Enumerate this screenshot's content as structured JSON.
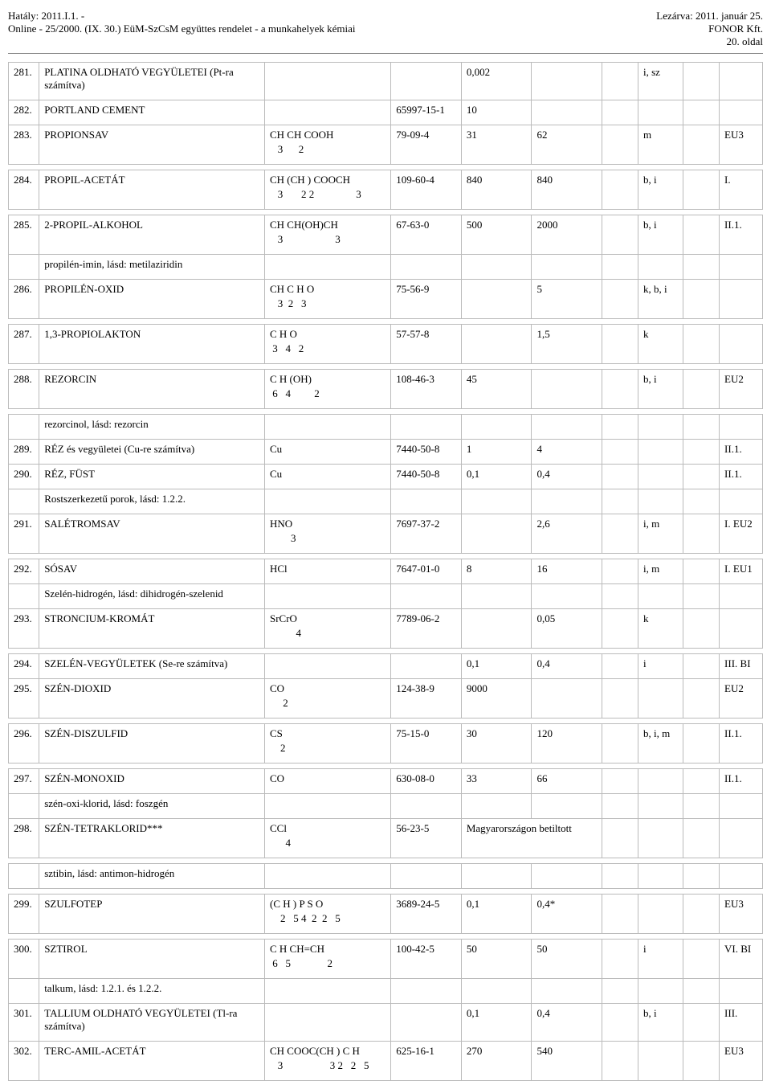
{
  "header": {
    "left1": "Hatály: 2011.I.1. -",
    "left2": "Online - 25/2000. (IX. 30.) EüM-SzCsM együttes rendelet - a munkahelyek kémiai",
    "right1": "Lezárva: 2011. január 25.",
    "right2": "FONOR Kft.",
    "right3": "20. oldal"
  },
  "rows": [
    {
      "n": "281.",
      "name": "PLATINA OLDHATÓ VEGYÜLETEI (Pt-ra számítva)",
      "formula": "",
      "sub": "",
      "cas": "",
      "v1": "0,002",
      "v2": "",
      "note": "i, sz",
      "cls": ""
    },
    {
      "n": "282.",
      "name": "PORTLAND CEMENT",
      "formula": "",
      "sub": "",
      "cas": "65997-15-1",
      "v1": "10",
      "v2": "",
      "note": "",
      "cls": ""
    },
    {
      "n": "283.",
      "name": "PROPIONSAV",
      "formula": "CH CH COOH",
      "sub": "   3      2",
      "cas": "79-09-4",
      "v1": "31",
      "v2": "62",
      "note": "m",
      "cls": "EU3"
    },
    {
      "n": "284.",
      "name": "PROPIL-ACETÁT",
      "formula": "CH (CH ) COOCH",
      "sub": "   3       2 2                3",
      "cas": "109-60-4",
      "v1": "840",
      "v2": "840",
      "note": "b, i",
      "cls": "I."
    },
    {
      "n": "285.",
      "name": "2-PROPIL-ALKOHOL",
      "formula": "CH CH(OH)CH",
      "sub": "   3                    3",
      "cas": "67-63-0",
      "v1": "500",
      "v2": "2000",
      "note": "b, i",
      "cls": "II.1."
    },
    {
      "n": "",
      "name": "propilén-imin, lásd: metilaziridin",
      "formula": "",
      "sub": "",
      "cas": "",
      "v1": "",
      "v2": "",
      "note": "",
      "cls": ""
    },
    {
      "n": "286.",
      "name": "PROPILÉN-OXID",
      "formula": "CH C H O",
      "sub": "   3  2   3",
      "cas": "75-56-9",
      "v1": "",
      "v2": "5",
      "note": "k, b, i",
      "cls": ""
    },
    {
      "n": "287.",
      "name": "1,3-PROPIOLAKTON",
      "formula": "C H O",
      "sub": " 3   4   2",
      "cas": "57-57-8",
      "v1": "",
      "v2": "1,5",
      "note": "k",
      "cls": ""
    },
    {
      "n": "288.",
      "name": "REZORCIN",
      "formula": "C H (OH)",
      "sub": " 6   4         2",
      "cas": "108-46-3",
      "v1": "45",
      "v2": "",
      "note": "b, i",
      "cls": "EU2"
    },
    {
      "n": "",
      "name": "rezorcinol, lásd: rezorcin",
      "formula": "",
      "sub": "",
      "cas": "",
      "v1": "",
      "v2": "",
      "note": "",
      "cls": ""
    },
    {
      "n": "289.",
      "name": "RÉZ és vegyületei (Cu-re számítva)",
      "formula": "Cu",
      "sub": "",
      "cas": "7440-50-8",
      "v1": "1",
      "v2": "4",
      "note": "",
      "cls": "II.1."
    },
    {
      "n": "290.",
      "name": "RÉZ, FÜST",
      "formula": "Cu",
      "sub": "",
      "cas": "7440-50-8",
      "v1": "0,1",
      "v2": "0,4",
      "note": "",
      "cls": "II.1."
    },
    {
      "n": "",
      "name": "Rostszerkezetű porok, lásd: 1.2.2.",
      "formula": "",
      "sub": "",
      "cas": "",
      "v1": "",
      "v2": "",
      "note": "",
      "cls": ""
    },
    {
      "n": "291.",
      "name": "SALÉTROMSAV",
      "formula": "HNO",
      "sub": "        3",
      "cas": "7697-37-2",
      "v1": "",
      "v2": "2,6",
      "note": "i, m",
      "cls": "I. EU2"
    },
    {
      "n": "292.",
      "name": "SÓSAV",
      "formula": "HCl",
      "sub": "",
      "cas": "7647-01-0",
      "v1": "8",
      "v2": "16",
      "note": "i, m",
      "cls": "I. EU1"
    },
    {
      "n": "",
      "name": "Szelén-hidrogén, lásd: dihidrogén-szelenid",
      "formula": "",
      "sub": "",
      "cas": "",
      "v1": "",
      "v2": "",
      "note": "",
      "cls": ""
    },
    {
      "n": "293.",
      "name": "STRONCIUM-KROMÁT",
      "formula": "SrCrO",
      "sub": "          4",
      "cas": "7789-06-2",
      "v1": "",
      "v2": "0,05",
      "note": "k",
      "cls": ""
    },
    {
      "n": "294.",
      "name": "SZELÉN-VEGYÜLETEK (Se-re számítva)",
      "formula": "",
      "sub": "",
      "cas": "",
      "v1": "0,1",
      "v2": "0,4",
      "note": "i",
      "cls": "III. BI"
    },
    {
      "n": "295.",
      "name": "SZÉN-DIOXID",
      "formula": "CO",
      "sub": "     2",
      "cas": "124-38-9",
      "v1": "9000",
      "v2": "",
      "note": "",
      "cls": "EU2"
    },
    {
      "n": "296.",
      "name": "SZÉN-DISZULFID",
      "formula": "CS",
      "sub": "    2",
      "cas": "75-15-0",
      "v1": "30",
      "v2": "120",
      "note": "b, i, m",
      "cls": "II.1."
    },
    {
      "n": "297.",
      "name": "SZÉN-MONOXID",
      "formula": "CO",
      "sub": "",
      "cas": "630-08-0",
      "v1": "33",
      "v2": "66",
      "note": "",
      "cls": "II.1."
    },
    {
      "n": "",
      "name": "szén-oxi-klorid, lásd: foszgén",
      "formula": "",
      "sub": "",
      "cas": "",
      "v1": "",
      "v2": "",
      "note": "",
      "cls": ""
    },
    {
      "n": "298.",
      "name": "SZÉN-TETRAKLORID***",
      "formula": "CCl",
      "sub": "      4",
      "cas": "56-23-5",
      "v1": "Magyarországon betiltott",
      "v2": "__MERGE__",
      "note": "",
      "cls": ""
    },
    {
      "n": "",
      "name": "sztibin, lásd: antimon-hidrogén",
      "formula": "",
      "sub": "",
      "cas": "",
      "v1": "",
      "v2": "",
      "note": "",
      "cls": ""
    },
    {
      "n": "299.",
      "name": "SZULFOTEP",
      "formula": "(C H ) P S O",
      "sub": "    2   5 4  2  2   5",
      "cas": "3689-24-5",
      "v1": "0,1",
      "v2": "0,4*",
      "note": "",
      "cls": "EU3"
    },
    {
      "n": "300.",
      "name": "SZTIROL",
      "formula": "C H CH=CH",
      "sub": " 6   5              2",
      "cas": "100-42-5",
      "v1": "50",
      "v2": "50",
      "note": "i",
      "cls": "VI. BI"
    },
    {
      "n": "",
      "name": "talkum, lásd: 1.2.1. és 1.2.2.",
      "formula": "",
      "sub": "",
      "cas": "",
      "v1": "",
      "v2": "",
      "note": "",
      "cls": ""
    },
    {
      "n": "301.",
      "name": "TALLIUM OLDHATÓ VEGYÜLETEI (Tl-ra számítva)",
      "formula": "",
      "sub": "",
      "cas": "",
      "v1": "0,1",
      "v2": "0,4",
      "note": "b, i",
      "cls": "III."
    },
    {
      "n": "302.",
      "name": "TERC-AMIL-ACETÁT",
      "formula": "CH COOC(CH ) C H",
      "sub": "   3                  3 2   2   5",
      "cas": "625-16-1",
      "v1": "270",
      "v2": "540",
      "note": "",
      "cls": "EU3"
    }
  ],
  "spacerAfter": [
    2,
    3,
    6,
    7,
    8,
    13,
    16,
    18,
    19,
    22,
    23,
    24
  ]
}
